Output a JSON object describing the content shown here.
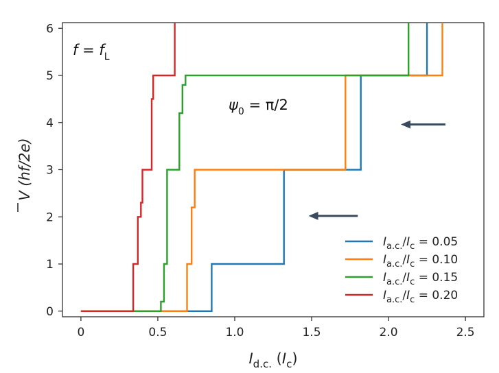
{
  "chart_data": {
    "type": "line",
    "step": true,
    "xlabel": {
      "main": "I",
      "sub": "d.c.",
      "unit_open": " (",
      "unit_main": "I",
      "unit_sub": "c",
      "unit_close": ")"
    },
    "ylabel": {
      "main": "V",
      "unit": " (hf/2e)"
    },
    "xlim": [
      -0.12,
      2.62
    ],
    "ylim": [
      -0.12,
      6.12
    ],
    "xticks": [
      0,
      0.5,
      1.0,
      1.5,
      2.0,
      2.5
    ],
    "xtick_labels": [
      "0",
      "0.5",
      "1.0",
      "1.5",
      "2.0",
      "2.5"
    ],
    "yticks": [
      0,
      1,
      2,
      3,
      4,
      5,
      6
    ],
    "ytick_labels": [
      "0",
      "1",
      "2",
      "3",
      "4",
      "5",
      "6"
    ],
    "grid": false,
    "legend_position": "bottom-right",
    "annotations": {
      "freq": {
        "lhs": "f",
        "eq": " = ",
        "rhs": "f",
        "sub": "L"
      },
      "phase": {
        "lhs": "ψ",
        "sub": "0",
        "rhs": " = π/2"
      },
      "arrows": [
        {
          "from": [
            2.37,
            3.96
          ],
          "to": [
            2.08,
            3.96
          ],
          "direction": "left"
        },
        {
          "from": [
            1.8,
            2.02
          ],
          "to": [
            1.48,
            2.02
          ],
          "direction": "left"
        }
      ]
    },
    "series": [
      {
        "name": "I_a.c./I_c = 0.05",
        "label": {
          "main": "I",
          "sub1": "a.c.",
          "slash": "/",
          "main2": "I",
          "sub2": "c",
          "value": " = 0.05"
        },
        "color": "#1f77b4",
        "x": [
          0.0,
          0.85,
          0.85,
          1.32,
          1.32,
          1.82,
          1.82,
          2.25,
          2.25
        ],
        "y": [
          0,
          0,
          1,
          1,
          3,
          3,
          5,
          5,
          6.12
        ]
      },
      {
        "name": "I_a.c./I_c = 0.10",
        "label": {
          "main": "I",
          "sub1": "a.c.",
          "slash": "/",
          "main2": "I",
          "sub2": "c",
          "value": " = 0.10"
        },
        "color": "#ff7f0e",
        "x": [
          0.0,
          0.69,
          0.69,
          0.72,
          0.72,
          0.74,
          0.74,
          1.72,
          1.72,
          2.35,
          2.35
        ],
        "y": [
          0,
          0,
          1,
          1,
          2.2,
          2.2,
          3,
          3,
          5,
          5,
          6.12
        ]
      },
      {
        "name": "I_a.c./I_c = 0.15",
        "label": {
          "main": "I",
          "sub1": "a.c.",
          "slash": "/",
          "main2": "I",
          "sub2": "c",
          "value": " = 0.15"
        },
        "color": "#2ca02c",
        "x": [
          0.0,
          0.52,
          0.52,
          0.54,
          0.54,
          0.56,
          0.56,
          0.64,
          0.64,
          0.66,
          0.66,
          0.68,
          0.68,
          2.13,
          2.13
        ],
        "y": [
          0,
          0,
          0.2,
          0.2,
          1,
          1,
          3,
          3,
          4.2,
          4.2,
          4.8,
          4.8,
          5,
          5,
          6.12
        ]
      },
      {
        "name": "I_a.c./I_c = 0.20",
        "label": {
          "main": "I",
          "sub1": "a.c.",
          "slash": "/",
          "main2": "I",
          "sub2": "c",
          "value": " = 0.20"
        },
        "color": "#d62728",
        "x": [
          0.0,
          0.34,
          0.34,
          0.37,
          0.37,
          0.39,
          0.39,
          0.4,
          0.4,
          0.42,
          0.42,
          0.46,
          0.46,
          0.47,
          0.47,
          0.52,
          0.52,
          0.61,
          0.61
        ],
        "y": [
          0,
          0,
          1,
          1,
          2,
          2,
          2.3,
          2.3,
          3,
          3,
          3,
          3,
          4.5,
          4.5,
          5,
          5,
          5,
          5,
          6.12
        ]
      }
    ]
  },
  "colors": {
    "axis": "#222222",
    "arrow": "#3a4a5c"
  }
}
